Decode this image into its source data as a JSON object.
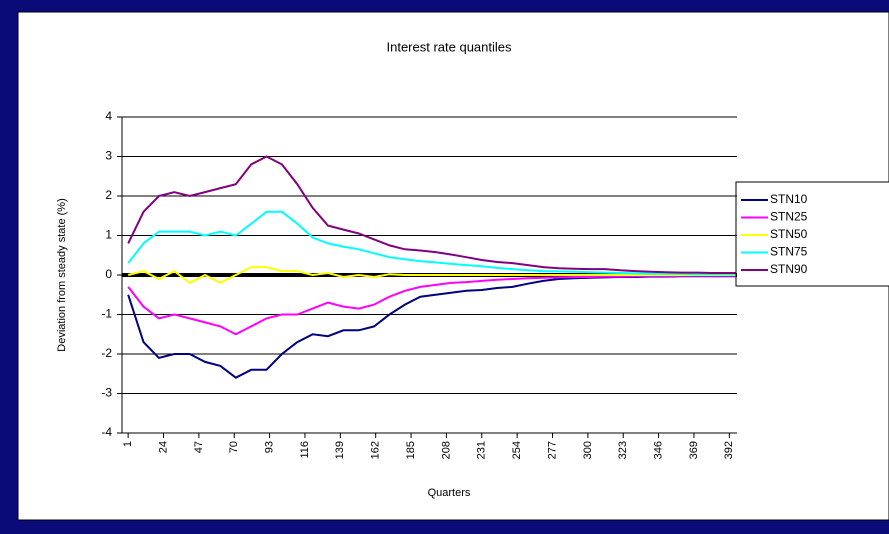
{
  "chart_data": {
    "type": "line",
    "title": "Interest rate quantiles",
    "ylabel": "Deviation from steady state (%)",
    "xlabel": "Quarters",
    "x": [
      1,
      11,
      21,
      31,
      41,
      51,
      61,
      71,
      81,
      91,
      101,
      111,
      121,
      131,
      141,
      151,
      161,
      171,
      181,
      191,
      201,
      211,
      221,
      231,
      241,
      251,
      261,
      271,
      281,
      291,
      301,
      311,
      321,
      331,
      341,
      351,
      361,
      371,
      381,
      391,
      396
    ],
    "series": [
      {
        "name": "STN10",
        "color": "#000080",
        "values": [
          -0.5,
          -1.7,
          -2.1,
          -2.0,
          -2.0,
          -2.2,
          -2.3,
          -2.6,
          -2.4,
          -2.4,
          -2.0,
          -1.7,
          -1.5,
          -1.55,
          -1.4,
          -1.4,
          -1.3,
          -1.0,
          -0.75,
          -0.55,
          -0.5,
          -0.45,
          -0.4,
          -0.38,
          -0.33,
          -0.3,
          -0.22,
          -0.15,
          -0.1,
          -0.08,
          -0.07,
          -0.06,
          -0.05,
          -0.05,
          -0.04,
          -0.04,
          -0.03,
          -0.03,
          -0.03,
          -0.03,
          -0.03
        ]
      },
      {
        "name": "STN25",
        "color": "#ff00ff",
        "values": [
          -0.3,
          -0.8,
          -1.1,
          -1.0,
          -1.1,
          -1.2,
          -1.3,
          -1.5,
          -1.3,
          -1.1,
          -1.0,
          -1.0,
          -0.85,
          -0.7,
          -0.8,
          -0.85,
          -0.75,
          -0.55,
          -0.4,
          -0.3,
          -0.25,
          -0.2,
          -0.18,
          -0.15,
          -0.12,
          -0.1,
          -0.08,
          -0.07,
          -0.06,
          -0.05,
          -0.05,
          -0.04,
          -0.04,
          -0.03,
          -0.03,
          -0.03,
          -0.02,
          -0.02,
          -0.02,
          -0.02,
          -0.02
        ]
      },
      {
        "name": "STN50",
        "color": "#ffff00",
        "values": [
          0,
          0.1,
          -0.1,
          0.1,
          -0.2,
          0,
          -0.2,
          0,
          0.2,
          0.2,
          0.1,
          0.1,
          0,
          0.05,
          -0.05,
          0,
          -0.05,
          0.02,
          0,
          0,
          0,
          0,
          0,
          0,
          0,
          0,
          0,
          0,
          0,
          0,
          0,
          0,
          0,
          0,
          0,
          0,
          0,
          0,
          0,
          0,
          0
        ]
      },
      {
        "name": "STN75",
        "color": "#00ffff",
        "values": [
          0.3,
          0.8,
          1.1,
          1.1,
          1.1,
          1.0,
          1.1,
          1.0,
          1.3,
          1.6,
          1.6,
          1.3,
          0.95,
          0.8,
          0.72,
          0.65,
          0.55,
          0.45,
          0.4,
          0.35,
          0.32,
          0.28,
          0.25,
          0.22,
          0.18,
          0.15,
          0.12,
          0.1,
          0.09,
          0.08,
          0.07,
          0.06,
          0.05,
          0.04,
          0.03,
          0.03,
          0.03,
          0.02,
          0.02,
          0.02,
          0.02
        ]
      },
      {
        "name": "STN90",
        "color": "#800080",
        "values": [
          0.8,
          1.6,
          2.0,
          2.1,
          2.0,
          2.1,
          2.2,
          2.3,
          2.8,
          3.0,
          2.8,
          2.3,
          1.7,
          1.25,
          1.15,
          1.05,
          0.9,
          0.75,
          0.65,
          0.62,
          0.58,
          0.52,
          0.45,
          0.38,
          0.33,
          0.3,
          0.25,
          0.2,
          0.17,
          0.16,
          0.15,
          0.15,
          0.12,
          0.1,
          0.08,
          0.07,
          0.06,
          0.06,
          0.05,
          0.05,
          0.05
        ]
      }
    ],
    "xlim": [
      -3,
      397
    ],
    "xticks": [
      1,
      24,
      47,
      70,
      93,
      116,
      139,
      162,
      185,
      208,
      231,
      254,
      277,
      300,
      323,
      346,
      369,
      392
    ],
    "ylim": [
      -4,
      4
    ],
    "yticks": [
      -4,
      -3,
      -2,
      -1,
      0,
      1,
      2,
      3,
      4
    ],
    "grid": true,
    "legend": "right"
  }
}
